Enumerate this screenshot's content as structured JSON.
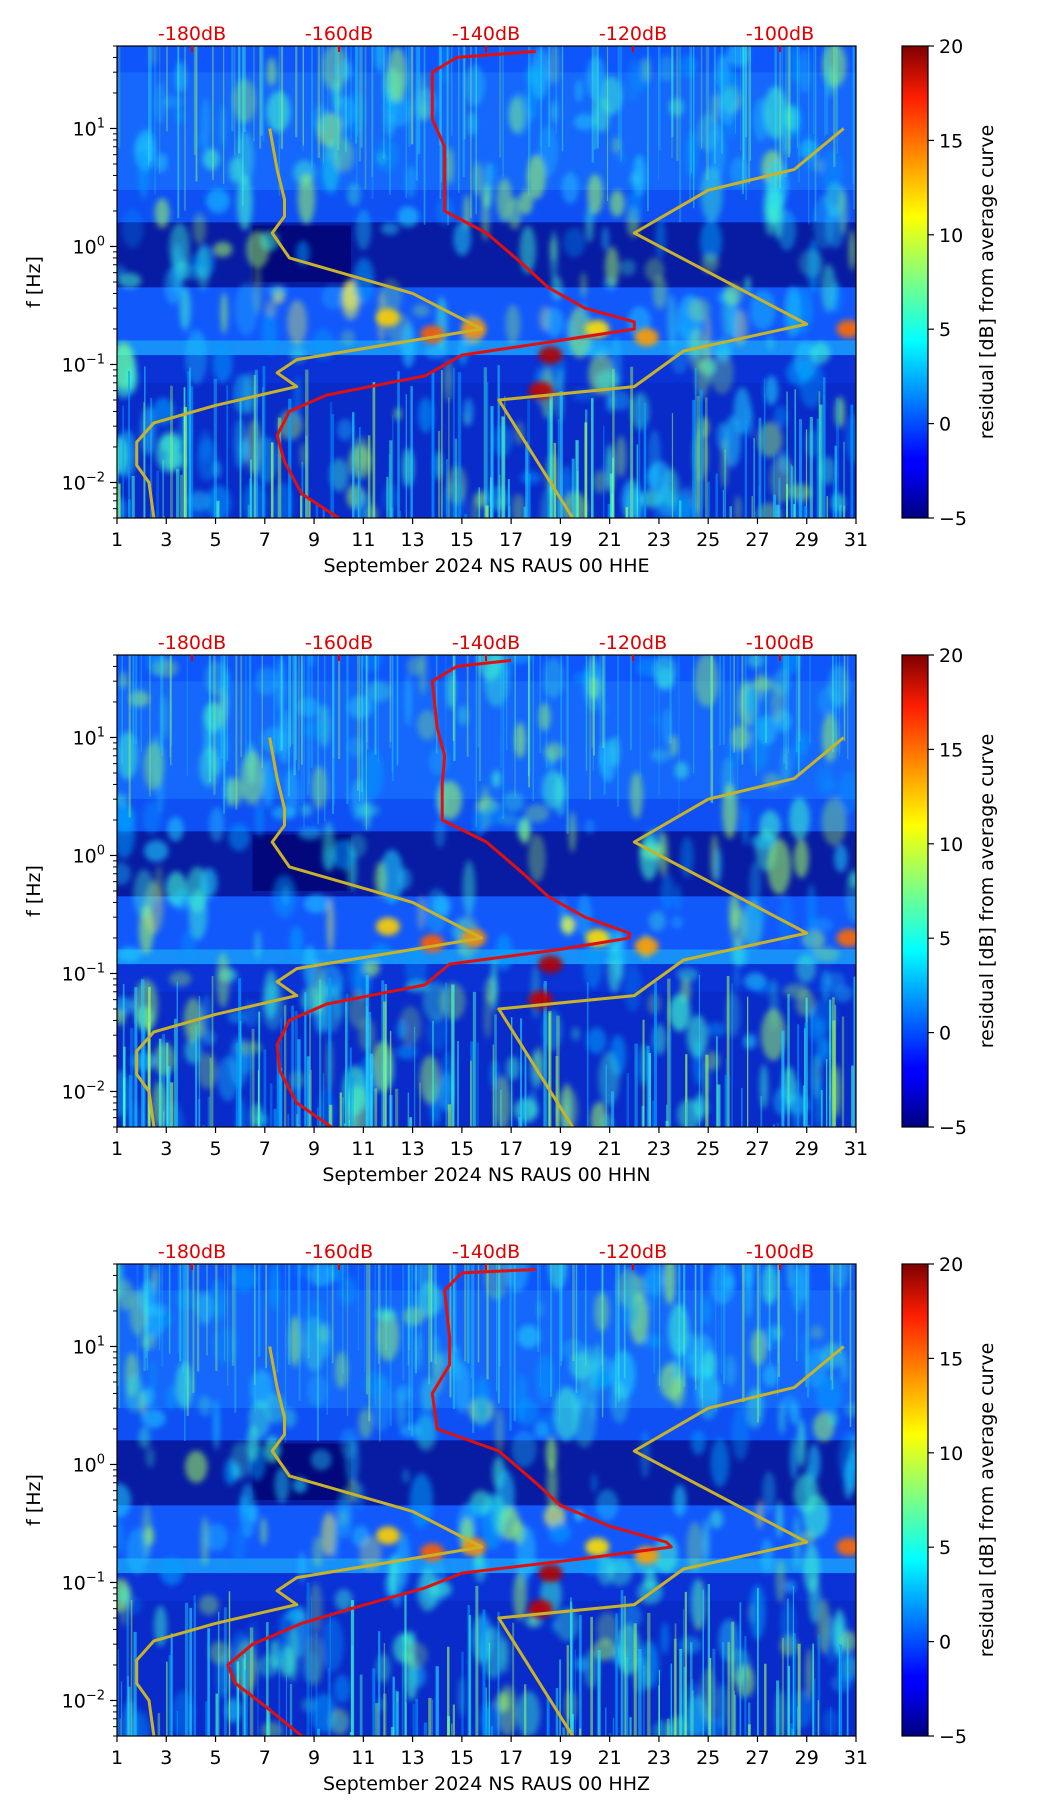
{
  "chart_data": [
    {
      "type": "heatmap",
      "xlabel": "September 2024 NS RAUS 00 HHE",
      "ylabel": "f [Hz]",
      "x_ticks": [
        "1",
        "3",
        "5",
        "7",
        "9",
        "11",
        "13",
        "15",
        "17",
        "19",
        "21",
        "23",
        "25",
        "27",
        "29",
        "31"
      ],
      "x_tick_values": [
        1,
        3,
        5,
        7,
        9,
        11,
        13,
        15,
        17,
        19,
        21,
        23,
        25,
        27,
        29,
        31
      ],
      "xlim": [
        1,
        31
      ],
      "ylim": [
        0.005,
        50
      ],
      "yscale": "log",
      "y_ticks": [
        "10^-2",
        "10^-1",
        "10^0",
        "10^1"
      ],
      "top_ticks": [
        "-180dB",
        "-160dB",
        "-140dB",
        "-120dB",
        "-100dB"
      ],
      "top_tick_values": [
        -180,
        -160,
        -140,
        -120,
        -100
      ],
      "colorbar": {
        "label": "residual [dB] from average curve",
        "ticks": [
          "−5",
          "0",
          "5",
          "10",
          "15",
          "20"
        ],
        "range": [
          -5,
          20
        ]
      },
      "series": [
        {
          "color": "#c8b22a",
          "points": [
            [
              2.5,
              0.005
            ],
            [
              2.3,
              0.01
            ],
            [
              1.8,
              0.014
            ],
            [
              1.8,
              0.022
            ],
            [
              2.5,
              0.032
            ],
            [
              5,
              0.045
            ],
            [
              8.3,
              0.065
            ],
            [
              7.5,
              0.085
            ],
            [
              8.3,
              0.11
            ],
            [
              15.8,
              0.2
            ],
            [
              13,
              0.4
            ],
            [
              8,
              0.8
            ],
            [
              7.3,
              1.3
            ],
            [
              7.8,
              1.8
            ],
            [
              7.8,
              2.5
            ],
            [
              7.5,
              4.5
            ],
            [
              7.2,
              10
            ]
          ]
        },
        {
          "color": "#c8b22a",
          "points": [
            [
              19.5,
              0.005
            ],
            [
              16.5,
              0.05
            ],
            [
              22,
              0.065
            ],
            [
              24,
              0.13
            ],
            [
              29,
              0.22
            ],
            [
              22,
              1.3
            ],
            [
              25,
              3
            ],
            [
              28.5,
              4.5
            ],
            [
              30.5,
              10
            ]
          ]
        },
        {
          "color": "#e01010",
          "points": [
            [
              10,
              0.005
            ],
            [
              8.5,
              0.008
            ],
            [
              7.8,
              0.015
            ],
            [
              7.5,
              0.025
            ],
            [
              8,
              0.04
            ],
            [
              9.5,
              0.055
            ],
            [
              13.5,
              0.08
            ],
            [
              15,
              0.12
            ],
            [
              19,
              0.16
            ],
            [
              22,
              0.2
            ],
            [
              22,
              0.23
            ],
            [
              20,
              0.3
            ],
            [
              18.5,
              0.45
            ],
            [
              17.5,
              0.7
            ],
            [
              16,
              1.3
            ],
            [
              14.3,
              2
            ],
            [
              14.3,
              4
            ],
            [
              14.3,
              7
            ],
            [
              13.8,
              12
            ],
            [
              13.8,
              30
            ],
            [
              14.8,
              40
            ],
            [
              18,
              45
            ]
          ]
        }
      ]
    },
    {
      "type": "heatmap",
      "xlabel": "September 2024 NS RAUS 00 HHN",
      "ylabel": "f [Hz]",
      "x_ticks": [
        "1",
        "3",
        "5",
        "7",
        "9",
        "11",
        "13",
        "15",
        "17",
        "19",
        "21",
        "23",
        "25",
        "27",
        "29",
        "31"
      ],
      "x_tick_values": [
        1,
        3,
        5,
        7,
        9,
        11,
        13,
        15,
        17,
        19,
        21,
        23,
        25,
        27,
        29,
        31
      ],
      "xlim": [
        1,
        31
      ],
      "ylim": [
        0.005,
        50
      ],
      "yscale": "log",
      "y_ticks": [
        "10^-2",
        "10^-1",
        "10^0",
        "10^1"
      ],
      "top_ticks": [
        "-180dB",
        "-160dB",
        "-140dB",
        "-120dB",
        "-100dB"
      ],
      "top_tick_values": [
        -180,
        -160,
        -140,
        -120,
        -100
      ],
      "colorbar": {
        "label": "residual [dB] from average curve",
        "ticks": [
          "−5",
          "0",
          "5",
          "10",
          "15",
          "20"
        ],
        "range": [
          -5,
          20
        ]
      },
      "series": [
        {
          "color": "#c8b22a",
          "points": [
            [
              2.5,
              0.005
            ],
            [
              2.3,
              0.01
            ],
            [
              1.8,
              0.014
            ],
            [
              1.8,
              0.022
            ],
            [
              2.5,
              0.032
            ],
            [
              5,
              0.045
            ],
            [
              8.3,
              0.065
            ],
            [
              7.5,
              0.085
            ],
            [
              8.3,
              0.11
            ],
            [
              15.8,
              0.2
            ],
            [
              13,
              0.4
            ],
            [
              8,
              0.8
            ],
            [
              7.3,
              1.3
            ],
            [
              7.8,
              1.8
            ],
            [
              7.8,
              2.5
            ],
            [
              7.5,
              4.5
            ],
            [
              7.2,
              10
            ]
          ]
        },
        {
          "color": "#c8b22a",
          "points": [
            [
              19.5,
              0.005
            ],
            [
              16.5,
              0.05
            ],
            [
              22,
              0.065
            ],
            [
              24,
              0.13
            ],
            [
              29,
              0.22
            ],
            [
              22,
              1.3
            ],
            [
              25,
              3
            ],
            [
              28.5,
              4.5
            ],
            [
              30.5,
              10
            ]
          ]
        },
        {
          "color": "#e01010",
          "points": [
            [
              9.7,
              0.005
            ],
            [
              8.3,
              0.008
            ],
            [
              7.6,
              0.015
            ],
            [
              7.5,
              0.025
            ],
            [
              8,
              0.04
            ],
            [
              9.5,
              0.055
            ],
            [
              13.5,
              0.08
            ],
            [
              14.5,
              0.12
            ],
            [
              19,
              0.16
            ],
            [
              21.8,
              0.2
            ],
            [
              21.8,
              0.22
            ],
            [
              20,
              0.3
            ],
            [
              18.5,
              0.45
            ],
            [
              17.5,
              0.7
            ],
            [
              16,
              1.3
            ],
            [
              14.2,
              2
            ],
            [
              14.2,
              4
            ],
            [
              14.3,
              7
            ],
            [
              14,
              12
            ],
            [
              13.8,
              30
            ],
            [
              14.8,
              40
            ],
            [
              17,
              45
            ]
          ]
        }
      ]
    },
    {
      "type": "heatmap",
      "xlabel": "September 2024 NS RAUS 00 HHZ",
      "ylabel": "f [Hz]",
      "x_ticks": [
        "1",
        "3",
        "5",
        "7",
        "9",
        "11",
        "13",
        "15",
        "17",
        "19",
        "21",
        "23",
        "25",
        "27",
        "29",
        "31"
      ],
      "x_tick_values": [
        1,
        3,
        5,
        7,
        9,
        11,
        13,
        15,
        17,
        19,
        21,
        23,
        25,
        27,
        29,
        31
      ],
      "xlim": [
        1,
        31
      ],
      "ylim": [
        0.005,
        50
      ],
      "yscale": "log",
      "y_ticks": [
        "10^-2",
        "10^-1",
        "10^0",
        "10^1"
      ],
      "top_ticks": [
        "-180dB",
        "-160dB",
        "-140dB",
        "-120dB",
        "-100dB"
      ],
      "top_tick_values": [
        -180,
        -160,
        -140,
        -120,
        -100
      ],
      "colorbar": {
        "label": "residual [dB] from average curve",
        "ticks": [
          "−5",
          "0",
          "5",
          "10",
          "15",
          "20"
        ],
        "range": [
          -5,
          20
        ]
      },
      "series": [
        {
          "color": "#c8b22a",
          "points": [
            [
              2.5,
              0.005
            ],
            [
              2.3,
              0.01
            ],
            [
              1.8,
              0.014
            ],
            [
              1.8,
              0.022
            ],
            [
              2.5,
              0.032
            ],
            [
              5,
              0.045
            ],
            [
              8.3,
              0.065
            ],
            [
              7.5,
              0.085
            ],
            [
              8.3,
              0.11
            ],
            [
              15.8,
              0.2
            ],
            [
              13,
              0.4
            ],
            [
              8,
              0.8
            ],
            [
              7.3,
              1.3
            ],
            [
              7.8,
              1.8
            ],
            [
              7.8,
              2.5
            ],
            [
              7.5,
              4.5
            ],
            [
              7.2,
              10
            ]
          ]
        },
        {
          "color": "#c8b22a",
          "points": [
            [
              19.5,
              0.005
            ],
            [
              16.5,
              0.05
            ],
            [
              22,
              0.065
            ],
            [
              24,
              0.13
            ],
            [
              29,
              0.22
            ],
            [
              22,
              1.3
            ],
            [
              25,
              3
            ],
            [
              28.5,
              4.5
            ],
            [
              30.5,
              10
            ]
          ]
        },
        {
          "color": "#e01010",
          "points": [
            [
              8.5,
              0.005
            ],
            [
              7,
              0.009
            ],
            [
              5.8,
              0.014
            ],
            [
              5.5,
              0.02
            ],
            [
              6.5,
              0.03
            ],
            [
              8.5,
              0.045
            ],
            [
              10.5,
              0.06
            ],
            [
              13.5,
              0.09
            ],
            [
              15,
              0.12
            ],
            [
              20,
              0.16
            ],
            [
              23.5,
              0.2
            ],
            [
              23.3,
              0.22
            ],
            [
              21,
              0.3
            ],
            [
              19,
              0.45
            ],
            [
              18,
              0.7
            ],
            [
              16.5,
              1.3
            ],
            [
              14,
              2
            ],
            [
              13.8,
              4
            ],
            [
              14.5,
              7
            ],
            [
              14.5,
              12
            ],
            [
              14.3,
              30
            ],
            [
              15,
              42
            ],
            [
              18,
              45
            ]
          ]
        }
      ]
    }
  ]
}
